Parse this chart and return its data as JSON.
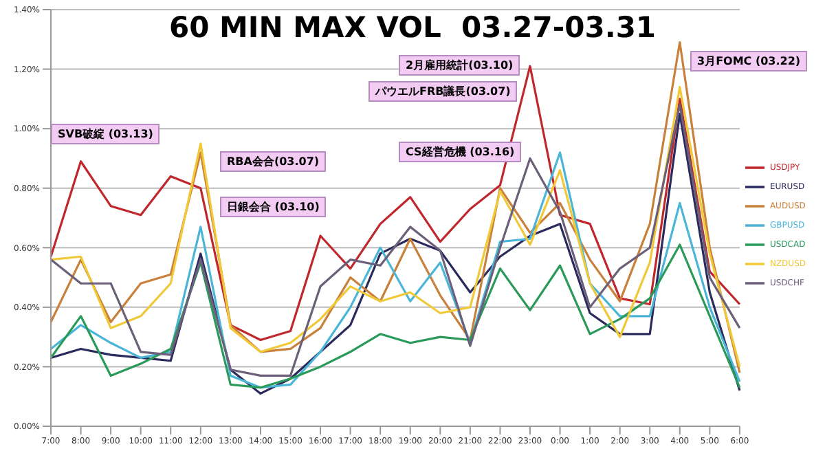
{
  "chart_data": {
    "type": "line",
    "title": "60 MIN MAX VOL  03.27-03.31",
    "categories": [
      "7:00",
      "8:00",
      "9:00",
      "10:00",
      "11:00",
      "12:00",
      "13:00",
      "14:00",
      "15:00",
      "16:00",
      "17:00",
      "18:00",
      "19:00",
      "20:00",
      "21:00",
      "22:00",
      "23:00",
      "0:00",
      "1:00",
      "2:00",
      "3:00",
      "4:00",
      "5:00",
      "6:00"
    ],
    "series": [
      {
        "name": "USDJPY",
        "color": "#c0272d",
        "values": [
          0.57,
          0.89,
          0.74,
          0.71,
          0.84,
          0.8,
          0.34,
          0.29,
          0.32,
          0.64,
          0.53,
          0.68,
          0.77,
          0.62,
          0.73,
          0.81,
          1.21,
          0.71,
          0.68,
          0.43,
          0.41,
          1.1,
          0.52,
          0.41
        ]
      },
      {
        "name": "EURUSD",
        "color": "#2b2a5c",
        "values": [
          0.23,
          0.26,
          0.24,
          0.23,
          0.22,
          0.58,
          0.19,
          0.11,
          0.16,
          0.25,
          0.34,
          0.58,
          0.63,
          0.59,
          0.45,
          0.57,
          0.64,
          0.68,
          0.38,
          0.31,
          0.31,
          1.05,
          0.45,
          0.12
        ]
      },
      {
        "name": "AUDUSD",
        "color": "#c8803a",
        "values": [
          0.35,
          0.56,
          0.35,
          0.48,
          0.51,
          0.92,
          0.34,
          0.25,
          0.26,
          0.33,
          0.5,
          0.42,
          0.63,
          0.44,
          0.29,
          0.8,
          0.65,
          0.75,
          0.56,
          0.42,
          0.68,
          1.29,
          0.6,
          0.18
        ]
      },
      {
        "name": "GBPUSD",
        "color": "#4bb5d8",
        "values": [
          0.26,
          0.34,
          0.28,
          0.23,
          0.25,
          0.67,
          0.17,
          0.13,
          0.14,
          0.25,
          0.4,
          0.6,
          0.42,
          0.55,
          0.28,
          0.62,
          0.63,
          0.92,
          0.48,
          0.37,
          0.37,
          0.75,
          0.4,
          0.15
        ]
      },
      {
        "name": "USDCAD",
        "color": "#2a9a5a",
        "values": [
          0.23,
          0.37,
          0.17,
          0.21,
          0.26,
          0.55,
          0.14,
          0.13,
          0.16,
          0.2,
          0.25,
          0.31,
          0.28,
          0.3,
          0.29,
          0.53,
          0.39,
          0.54,
          0.31,
          0.36,
          0.43,
          0.61,
          0.37,
          0.13
        ]
      },
      {
        "name": "NZDUSD",
        "color": "#f0c838",
        "values": [
          0.56,
          0.57,
          0.33,
          0.37,
          0.48,
          0.95,
          0.33,
          0.25,
          0.28,
          0.36,
          0.47,
          0.42,
          0.45,
          0.38,
          0.4,
          0.79,
          0.61,
          0.86,
          0.48,
          0.3,
          0.55,
          1.14,
          0.58,
          0.2
        ]
      },
      {
        "name": "USDCHF",
        "color": "#6b5f7a",
        "values": [
          0.56,
          0.48,
          0.48,
          0.25,
          0.24,
          0.56,
          0.19,
          0.17,
          0.17,
          0.47,
          0.56,
          0.54,
          0.67,
          0.59,
          0.27,
          0.6,
          0.9,
          0.72,
          0.4,
          0.53,
          0.6,
          1.08,
          0.5,
          0.33
        ]
      }
    ],
    "ylim": [
      0,
      1.4
    ],
    "yticks": [
      {
        "value": 0,
        "label": "0.00%"
      },
      {
        "value": 0.2,
        "label": "0.20%"
      },
      {
        "value": 0.4,
        "label": "0.40%"
      },
      {
        "value": 0.6,
        "label": "0.60%"
      },
      {
        "value": 0.8,
        "label": "0.80%"
      },
      {
        "value": 1.0,
        "label": "1.00%"
      },
      {
        "value": 1.2,
        "label": "1.20%"
      },
      {
        "value": 1.4,
        "label": "1.40%"
      }
    ],
    "grid": "y",
    "legend": "right",
    "marker": "none",
    "line_style": "solid",
    "annotations": [
      "SVB破綻 (03.13)",
      "RBA会合(03.07)",
      "日銀会合 (03.10)",
      "2月雇用統計(03.10)",
      "パウエルFRB議長(03.07)",
      "CS経営危機 (03.16)",
      "3月FOMC (03.22)"
    ]
  }
}
